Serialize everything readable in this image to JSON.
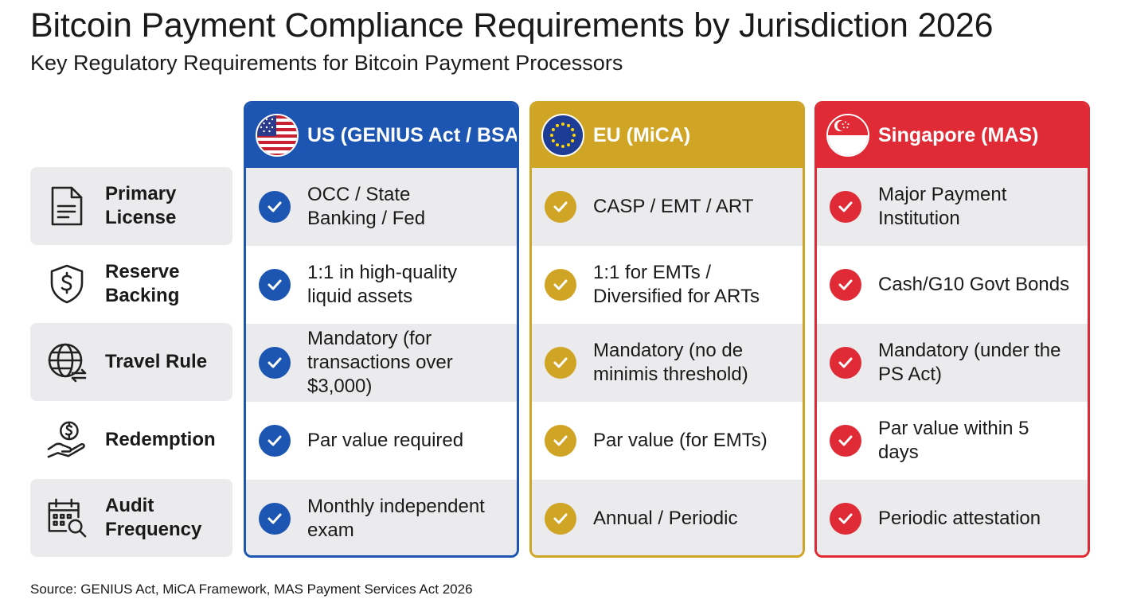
{
  "title": "Bitcoin Payment Compliance Requirements by Jurisdiction 2026",
  "subtitle": "Key Regulatory Requirements for Bitcoin Payment Processors",
  "source": "Source: GENIUS Act, MiCA Framework, MAS Payment Services Act 2026",
  "rows": [
    {
      "line1": "Primary",
      "line2": "License",
      "icon": "document-icon"
    },
    {
      "line1": "Reserve",
      "line2": "Backing",
      "icon": "shield-dollar-icon"
    },
    {
      "line1": "Travel Rule",
      "line2": "",
      "icon": "globe-transfer-icon"
    },
    {
      "line1": "Redemption",
      "line2": "",
      "icon": "hand-coin-icon"
    },
    {
      "line1": "Audit",
      "line2": "Frequency",
      "icon": "calendar-search-icon"
    }
  ],
  "columns": [
    {
      "name": "US (GENIUS Act / BSA)",
      "flag": "us-flag-icon",
      "color": "#1d55b3",
      "cells": [
        [
          "OCC / State",
          "Banking / Fed"
        ],
        [
          "1:1 in high-quality",
          "liquid assets"
        ],
        [
          "Mandatory (for",
          "transactions over",
          "$3,000)"
        ],
        [
          "Par value required"
        ],
        [
          "Monthly independent",
          "exam"
        ]
      ]
    },
    {
      "name": "EU (MiCA)",
      "flag": "eu-flag-icon",
      "color": "#d0a424",
      "cells": [
        [
          "CASP / EMT / ART"
        ],
        [
          "1:1 for EMTs /",
          "Diversified for ARTs"
        ],
        [
          "Mandatory (no de",
          "minimis threshold)"
        ],
        [
          "Par value (for EMTs)"
        ],
        [
          "Annual / Periodic"
        ]
      ]
    },
    {
      "name": "Singapore (MAS)",
      "flag": "singapore-flag-icon",
      "color": "#e02a35",
      "cells": [
        [
          "Major Payment",
          "Institution"
        ],
        [
          "Cash/G10 Govt Bonds"
        ],
        [
          "Mandatory (under the",
          "PS Act)"
        ],
        [
          "Par value within 5",
          "days"
        ],
        [
          "Periodic attestation"
        ]
      ]
    }
  ]
}
